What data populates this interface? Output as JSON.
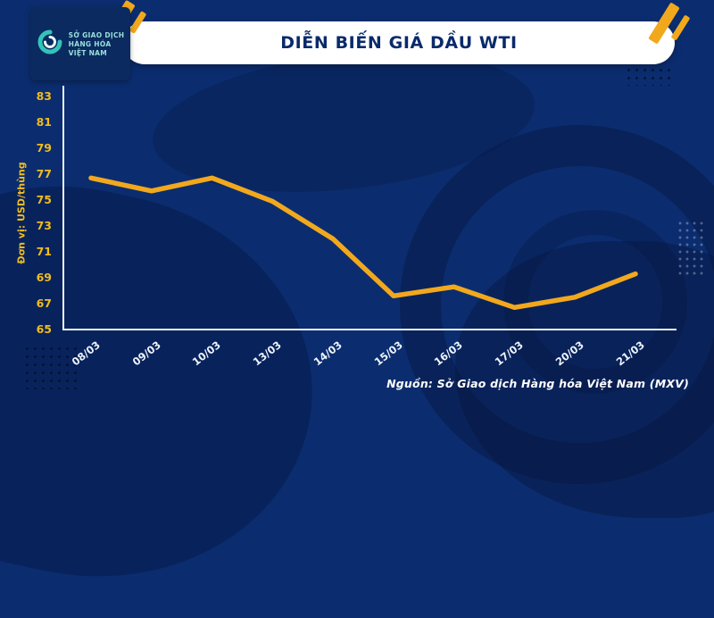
{
  "header": {
    "title": "DIỄN BIẾN GIÁ DẦU WTI",
    "logo": {
      "line1": "SỞ GIAO DỊCH",
      "line2": "HÀNG HÓA",
      "line3": "VIỆT NAM"
    }
  },
  "chart_data": {
    "type": "line",
    "title": "DIỄN BIẾN GIÁ DẦU WTI",
    "categories": [
      "08/03",
      "09/03",
      "10/03",
      "13/03",
      "14/03",
      "15/03",
      "16/03",
      "17/03",
      "20/03",
      "21/03"
    ],
    "values": [
      76.7,
      75.7,
      76.7,
      74.9,
      72.0,
      67.6,
      68.3,
      66.7,
      67.5,
      69.3
    ],
    "ylabel": "Đơn vị: USD/thùng",
    "xlabel": "",
    "ylim": [
      65,
      83
    ],
    "yticks": [
      83,
      81,
      79,
      77,
      75,
      73,
      71,
      69,
      67,
      65
    ],
    "grid": false,
    "legend_position": "none",
    "line_color": "#F2A81D"
  },
  "footer": {
    "source": "Nguồn: Sở Giao dịch Hàng hóa Việt Nam (MXV)"
  },
  "colors": {
    "background": "#0B2D6F",
    "accent_yellow": "#F2A81D",
    "tick_label_yellow": "#F0BC1F",
    "title_navy": "#0A2A6B",
    "axis_white": "#FFFFFF",
    "logo_teal": "#34C3B9"
  }
}
